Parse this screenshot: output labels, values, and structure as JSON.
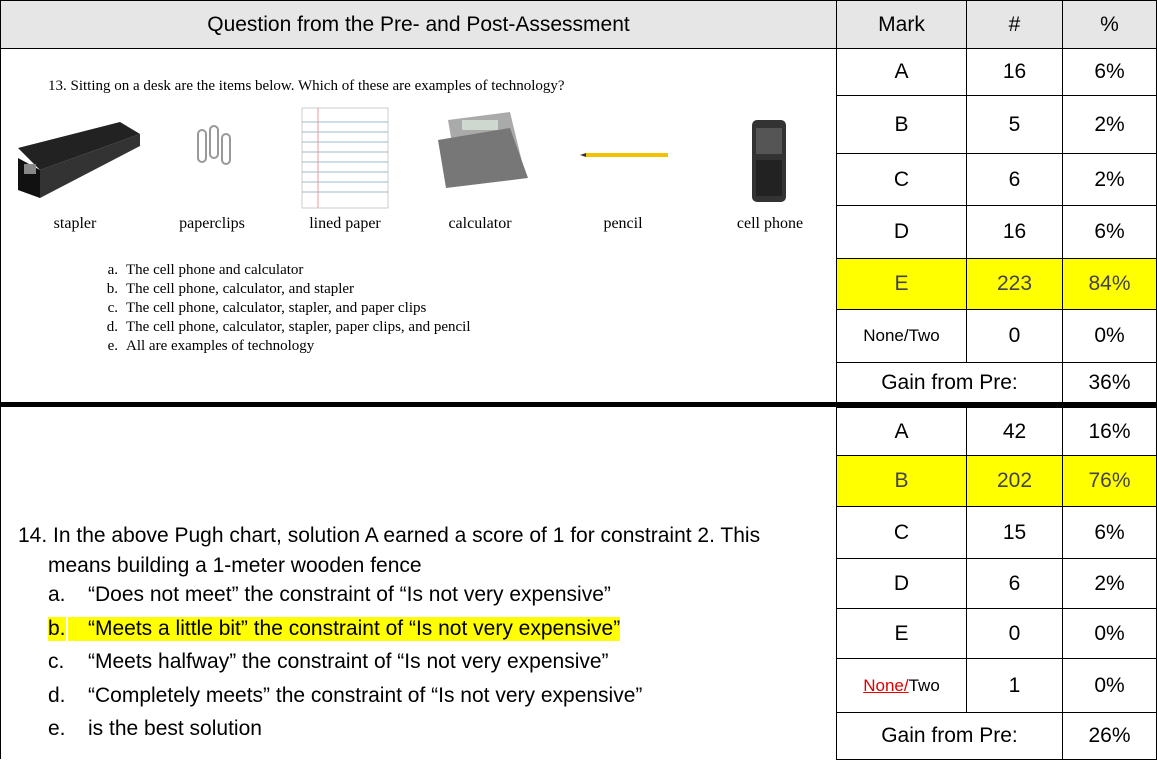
{
  "header": {
    "question": "Question from the Pre- and Post-Assessment",
    "mark": "Mark",
    "count": "#",
    "percent": "%"
  },
  "questions": [
    {
      "prompt": "13. Sitting on a desk are the items below. Which of these are examples of technology?",
      "items": [
        "stapler",
        "paperclips",
        "lined paper",
        "calculator",
        "pencil",
        "cell phone"
      ],
      "options": [
        {
          "letter": "a.",
          "text": "The cell phone and calculator"
        },
        {
          "letter": "b.",
          "text": "The cell phone, calculator, and stapler"
        },
        {
          "letter": "c.",
          "text": "The cell phone, calculator, stapler, and paper clips"
        },
        {
          "letter": "d.",
          "text": "The cell phone, calculator, stapler, paper clips, and pencil"
        },
        {
          "letter": "e.",
          "text": "All are examples of technology"
        }
      ],
      "rows": [
        {
          "mark": "A",
          "count": "16",
          "percent": "6%"
        },
        {
          "mark": "B",
          "count": "5",
          "percent": "2%"
        },
        {
          "mark": "C",
          "count": "6",
          "percent": "2%"
        },
        {
          "mark": "D",
          "count": "16",
          "percent": "6%"
        },
        {
          "mark": "E",
          "count": "223",
          "percent": "84%"
        },
        {
          "mark": "None/Two",
          "count": "0",
          "percent": "0%"
        }
      ],
      "highlight_row": 4,
      "gain_label": "Gain from Pre:",
      "gain_value": "36%"
    },
    {
      "prompt": "14. In the above Pugh chart, solution A earned a score of 1 for constraint 2. This means building a 1-meter wooden fence",
      "options": [
        {
          "letter": "a.",
          "text": "“Does not meet” the constraint of “Is not very expensive”"
        },
        {
          "letter": "b.",
          "text": "“Meets a little bit” the constraint of “Is not very expensive”"
        },
        {
          "letter": "c.",
          "text": "“Meets halfway” the constraint of “Is not very expensive”"
        },
        {
          "letter": "d.",
          "text": "“Completely meets” the constraint of “Is not very expensive”"
        },
        {
          "letter": "e.",
          "text": "is the best solution"
        }
      ],
      "highlight_option": 1,
      "rows": [
        {
          "mark": "A",
          "count": "42",
          "percent": "16%"
        },
        {
          "mark": "B",
          "count": "202",
          "percent": "76%"
        },
        {
          "mark": "C",
          "count": "15",
          "percent": "6%"
        },
        {
          "mark": "D",
          "count": "6",
          "percent": "2%"
        },
        {
          "mark": "E",
          "count": "0",
          "percent": "0%"
        },
        {
          "mark": [
            "None/",
            "Two"
          ],
          "count": "1",
          "percent": "0%"
        }
      ],
      "highlight_row": 1,
      "gain_label": "Gain from Pre:",
      "gain_value": "26%"
    }
  ]
}
